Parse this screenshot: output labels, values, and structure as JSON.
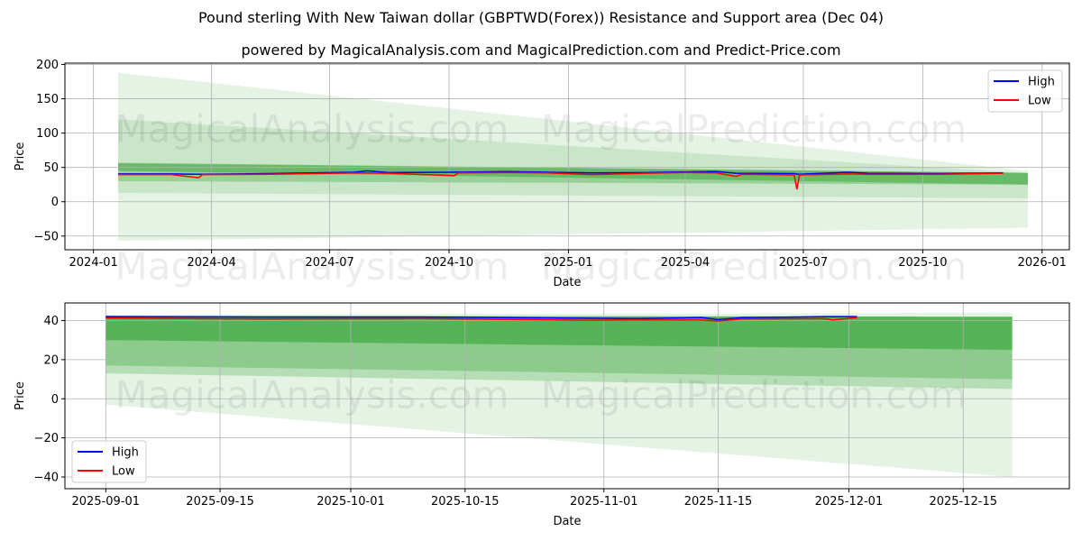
{
  "title": "Pound sterling With New Taiwan dollar (GBPTWD(Forex)) Resistance and Support area (Dec 04)",
  "subtitle": "powered by MagicalAnalysis.com and MagicalPrediction.com and Predict-Price.com",
  "watermarks": [
    "MagicalAnalysis.com",
    "MagicalPrediction.com"
  ],
  "colors": {
    "high": "#0000ff",
    "low": "#ff0000",
    "band": "#2ca02c"
  },
  "chart_data": [
    {
      "type": "line",
      "xlabel": "Date",
      "ylabel": "Price",
      "xlim": [
        "2023-12-10",
        "2026-01-22"
      ],
      "ylim": [
        -70,
        202
      ],
      "xticks": [
        "2024-01",
        "2024-04",
        "2024-07",
        "2024-10",
        "2025-01",
        "2025-04",
        "2025-07",
        "2025-10",
        "2026-01"
      ],
      "xtick_dates": [
        "2024-01-01",
        "2024-04-01",
        "2024-07-01",
        "2024-10-01",
        "2025-01-01",
        "2025-04-01",
        "2025-07-01",
        "2025-10-01",
        "2026-01-01"
      ],
      "yticks": [
        -50,
        0,
        50,
        100,
        150,
        200
      ],
      "legend": {
        "position": "top-right",
        "entries": [
          "High",
          "Low"
        ]
      },
      "grid": true,
      "bands": {
        "start": "2024-01-20",
        "end": "2025-12-21",
        "list": [
          {
            "top": [
              188,
              45
            ],
            "bottom": [
              -57,
              -38
            ],
            "opacity": 0.13
          },
          {
            "top": [
              120,
              42
            ],
            "bottom": [
              13,
              5
            ],
            "opacity": 0.15
          },
          {
            "top": [
              57,
              42
            ],
            "bottom": [
              30,
              25
            ],
            "opacity": 0.3
          },
          {
            "top": [
              56,
              42
            ],
            "bottom": [
              45,
              25
            ],
            "opacity": 0.45
          }
        ]
      },
      "series": [
        {
          "name": "High",
          "points": [
            [
              "2024-01-20",
              40.5
            ],
            [
              "2024-03-01",
              40.5
            ],
            [
              "2024-03-22",
              40
            ],
            [
              "2024-05-15",
              41
            ],
            [
              "2024-07-20",
              43
            ],
            [
              "2024-07-30",
              45
            ],
            [
              "2024-08-15",
              42.5
            ],
            [
              "2024-10-05",
              43
            ],
            [
              "2024-11-15",
              44
            ],
            [
              "2024-12-15",
              43
            ],
            [
              "2025-01-20",
              42
            ],
            [
              "2025-03-01",
              42.5
            ],
            [
              "2025-04-01",
              43.5
            ],
            [
              "2025-04-25",
              44
            ],
            [
              "2025-05-10",
              41.5
            ],
            [
              "2025-06-24",
              41
            ],
            [
              "2025-06-27",
              40
            ],
            [
              "2025-08-05",
              43
            ],
            [
              "2025-08-20",
              41.5
            ],
            [
              "2025-10-15",
              41
            ],
            [
              "2025-12-02",
              42
            ]
          ]
        },
        {
          "name": "Low",
          "points": [
            [
              "2024-01-20",
              39.5
            ],
            [
              "2024-03-01",
              39.5
            ],
            [
              "2024-03-22",
              35
            ],
            [
              "2024-03-25",
              39.5
            ],
            [
              "2024-05-15",
              40
            ],
            [
              "2024-07-20",
              42
            ],
            [
              "2024-08-15",
              41.5
            ],
            [
              "2024-10-05",
              38
            ],
            [
              "2024-10-08",
              42
            ],
            [
              "2024-11-15",
              42.5
            ],
            [
              "2024-12-15",
              42
            ],
            [
              "2025-01-20",
              39.5
            ],
            [
              "2025-03-01",
              41.5
            ],
            [
              "2025-04-01",
              42.5
            ],
            [
              "2025-04-25",
              42
            ],
            [
              "2025-05-10",
              37
            ],
            [
              "2025-05-15",
              40
            ],
            [
              "2025-06-24",
              39
            ],
            [
              "2025-06-26",
              18
            ],
            [
              "2025-06-28",
              39
            ],
            [
              "2025-08-05",
              40.5
            ],
            [
              "2025-08-20",
              40
            ],
            [
              "2025-10-15",
              40
            ],
            [
              "2025-12-02",
              41.5
            ]
          ]
        }
      ]
    },
    {
      "type": "line",
      "xlabel": "Date",
      "ylabel": "Price",
      "xlim": [
        "2025-08-27",
        "2025-12-28"
      ],
      "ylim": [
        -46,
        49
      ],
      "xticks": [
        "2025-09-01",
        "2025-09-15",
        "2025-10-01",
        "2025-10-15",
        "2025-11-01",
        "2025-11-15",
        "2025-12-01",
        "2025-12-15"
      ],
      "xtick_dates": [
        "2025-09-01",
        "2025-09-15",
        "2025-10-01",
        "2025-10-15",
        "2025-11-01",
        "2025-11-15",
        "2025-12-01",
        "2025-12-15"
      ],
      "yticks": [
        -40,
        -20,
        0,
        20,
        40
      ],
      "legend": {
        "position": "bottom-left",
        "entries": [
          "High",
          "Low"
        ]
      },
      "grid": true,
      "bands": {
        "start": "2025-09-01",
        "end": "2025-12-21",
        "list": [
          {
            "top": [
              43,
              44
            ],
            "bottom": [
              -3,
              -40
            ],
            "opacity": 0.13
          },
          {
            "top": [
              42,
              42
            ],
            "bottom": [
              13,
              5
            ],
            "opacity": 0.25
          },
          {
            "top": [
              42,
              42
            ],
            "bottom": [
              17,
              10
            ],
            "opacity": 0.3
          },
          {
            "top": [
              42.5,
              42
            ],
            "bottom": [
              30,
              25
            ],
            "opacity": 0.55
          }
        ]
      },
      "series": [
        {
          "name": "High",
          "points": [
            [
              "2025-09-01",
              42
            ],
            [
              "2025-09-20",
              41.8
            ],
            [
              "2025-10-10",
              41.8
            ],
            [
              "2025-10-29",
              41.2
            ],
            [
              "2025-11-05",
              41
            ],
            [
              "2025-11-13",
              41.5
            ],
            [
              "2025-11-15",
              40.5
            ],
            [
              "2025-11-18",
              41.5
            ],
            [
              "2025-11-28",
              42
            ],
            [
              "2025-12-02",
              42
            ]
          ]
        },
        {
          "name": "Low",
          "points": [
            [
              "2025-09-01",
              41.3
            ],
            [
              "2025-09-20",
              40.8
            ],
            [
              "2025-10-10",
              41
            ],
            [
              "2025-10-29",
              40.2
            ],
            [
              "2025-11-05",
              40.3
            ],
            [
              "2025-11-13",
              40.3
            ],
            [
              "2025-11-15",
              39.8
            ],
            [
              "2025-11-18",
              40.8
            ],
            [
              "2025-11-28",
              41
            ],
            [
              "2025-11-29",
              40.3
            ],
            [
              "2025-12-02",
              41.5
            ]
          ]
        }
      ]
    }
  ]
}
